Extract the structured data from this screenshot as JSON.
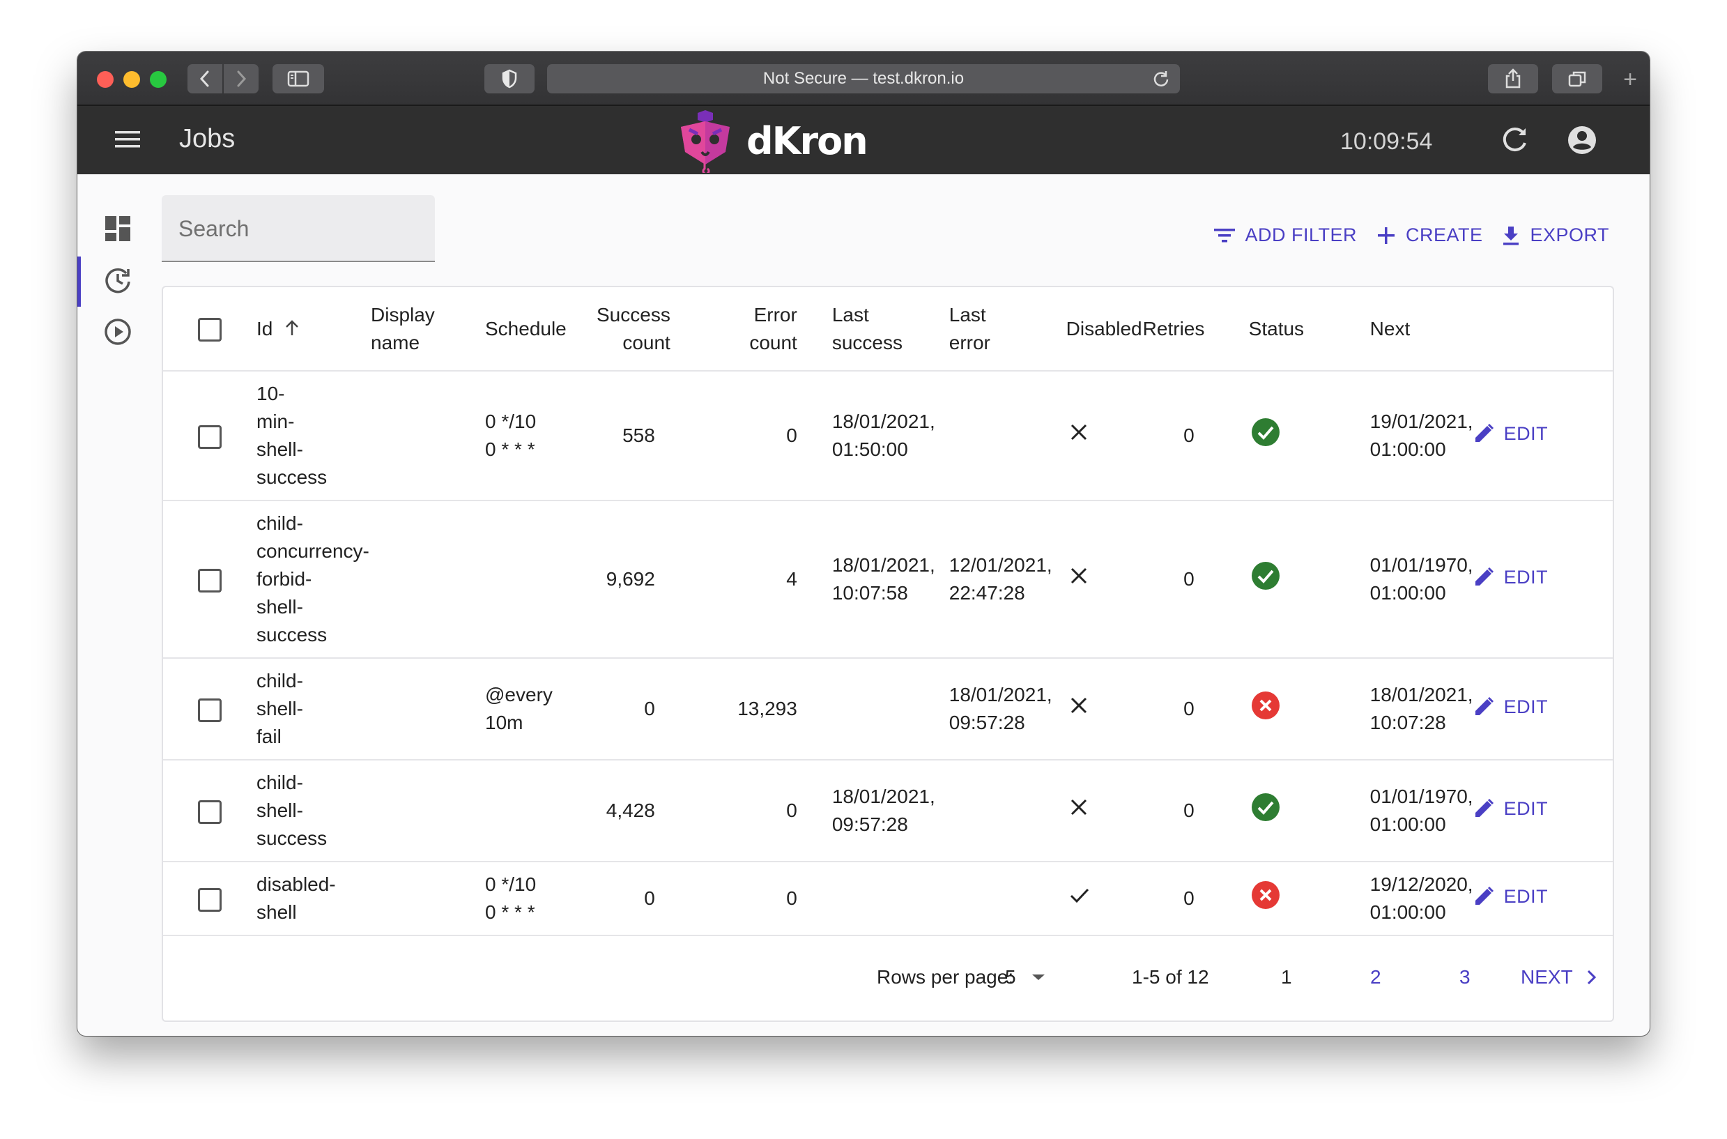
{
  "browser": {
    "url_text": "Not Secure — test.dkron.io"
  },
  "appbar": {
    "title": "Jobs",
    "logo_text": "dKron",
    "clock": "10:09:54"
  },
  "search": {
    "placeholder": "Search"
  },
  "actions": {
    "add_filter": "ADD FILTER",
    "create": "CREATE",
    "export": "EXPORT"
  },
  "table": {
    "headers": {
      "id": "Id",
      "display_name": [
        "Display",
        "name"
      ],
      "schedule": "Schedule",
      "success_count": [
        "Success",
        "count"
      ],
      "error_count": [
        "Error",
        "count"
      ],
      "last_success": [
        "Last",
        "success"
      ],
      "last_error": [
        "Last",
        "error"
      ],
      "disabled": "Disabled",
      "retries": "Retries",
      "status": "Status",
      "next": "Next"
    },
    "edit_label": "EDIT",
    "rows": [
      {
        "id": [
          "10-",
          "min-",
          "shell-",
          "success"
        ],
        "display_name": "",
        "schedule": [
          "0 */10",
          "0 * * *"
        ],
        "success_count": "558",
        "error_count": "0",
        "last_success": [
          "18/01/2021,",
          "01:50:00"
        ],
        "last_error": [
          "",
          ""
        ],
        "disabled": false,
        "retries": "0",
        "status": "success",
        "next": [
          "19/01/2021,",
          "01:00:00"
        ]
      },
      {
        "id": [
          "child-",
          "concurrency-",
          "forbid-",
          "shell-",
          "success"
        ],
        "display_name": "",
        "schedule": [
          "",
          ""
        ],
        "success_count": "9,692",
        "error_count": "4",
        "last_success": [
          "18/01/2021,",
          "10:07:58"
        ],
        "last_error": [
          "12/01/2021,",
          "22:47:28"
        ],
        "disabled": false,
        "retries": "0",
        "status": "success",
        "next": [
          "01/01/1970,",
          "01:00:00"
        ]
      },
      {
        "id": [
          "child-",
          "shell-",
          "fail"
        ],
        "display_name": "",
        "schedule": [
          "@every",
          "10m"
        ],
        "success_count": "0",
        "error_count": "13,293",
        "last_success": [
          "",
          ""
        ],
        "last_error": [
          "18/01/2021,",
          "09:57:28"
        ],
        "disabled": false,
        "retries": "0",
        "status": "failed",
        "next": [
          "18/01/2021,",
          "10:07:28"
        ]
      },
      {
        "id": [
          "child-",
          "shell-",
          "success"
        ],
        "display_name": "",
        "schedule": [
          "",
          ""
        ],
        "success_count": "4,428",
        "error_count": "0",
        "last_success": [
          "18/01/2021,",
          "09:57:28"
        ],
        "last_error": [
          "",
          ""
        ],
        "disabled": false,
        "retries": "0",
        "status": "success",
        "next": [
          "01/01/1970,",
          "01:00:00"
        ]
      },
      {
        "id": [
          "disabled-",
          "shell"
        ],
        "display_name": "",
        "schedule": [
          "0 */10",
          "0 * * *"
        ],
        "success_count": "0",
        "error_count": "0",
        "last_success": [
          "",
          ""
        ],
        "last_error": [
          "",
          ""
        ],
        "disabled": true,
        "retries": "0",
        "status": "failed",
        "next": [
          "19/12/2020,",
          "01:00:00"
        ]
      }
    ]
  },
  "pagination": {
    "rows_per_page_label": "Rows per page:",
    "rows_per_page_value": "5",
    "range": "1-5 of 12",
    "pages": [
      "1",
      "2",
      "3"
    ],
    "current_page": "1",
    "next_label": "NEXT"
  },
  "colors": {
    "accent": "#4a3fc4",
    "appbar": "#2f2f2f",
    "success": "#2e7d32",
    "error": "#e53935"
  }
}
